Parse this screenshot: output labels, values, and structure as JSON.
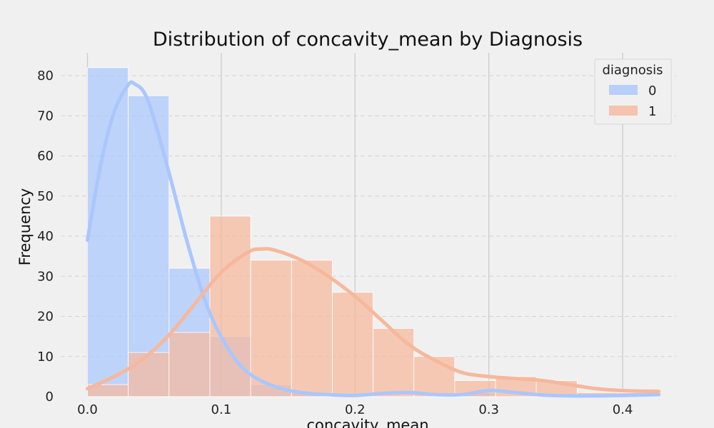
{
  "chart_data": {
    "type": "histogram",
    "title": "Distribution of concavity_mean by Diagnosis",
    "xlabel": "concavity_mean",
    "ylabel": "Frequency",
    "xlim": [
      -0.02,
      0.44
    ],
    "ylim": [
      0,
      85
    ],
    "x_ticks": [
      0.0,
      0.1,
      0.2,
      0.3,
      0.4
    ],
    "y_ticks": [
      0,
      10,
      20,
      30,
      40,
      50,
      60,
      70,
      80
    ],
    "grid": true,
    "legend": {
      "title": "diagnosis",
      "placement": "top-right"
    },
    "bin_edges": [
      0.0,
      0.0305,
      0.061,
      0.0915,
      0.122,
      0.1525,
      0.183,
      0.2135,
      0.244,
      0.2745,
      0.305,
      0.3355,
      0.366,
      0.3965,
      0.427
    ],
    "series": [
      {
        "name": "0",
        "color": "#aac7fd",
        "counts": [
          82,
          75,
          32,
          15,
          3,
          1,
          0,
          0,
          0,
          1,
          0,
          0,
          0,
          0
        ],
        "kde_x": [
          0.0,
          0.01,
          0.02,
          0.03,
          0.035,
          0.045,
          0.06,
          0.075,
          0.09,
          0.105,
          0.12,
          0.14,
          0.16,
          0.18,
          0.2,
          0.22,
          0.24,
          0.26,
          0.28,
          0.3,
          0.32,
          0.34,
          0.36,
          0.38,
          0.4,
          0.427
        ],
        "kde_y": [
          39,
          58,
          71,
          77.5,
          78,
          74,
          57,
          38,
          22,
          12,
          6,
          2.5,
          1,
          0.5,
          0.3,
          0.8,
          1,
          0.5,
          0.5,
          1.5,
          1,
          0.4,
          0.2,
          0.2,
          0.3,
          0.5
        ]
      },
      {
        "name": "1",
        "color": "#f6b89d",
        "counts": [
          3,
          11,
          16,
          45,
          34,
          34,
          26,
          17,
          10,
          4,
          5,
          4,
          1,
          1
        ],
        "kde_x": [
          0.0,
          0.02,
          0.04,
          0.06,
          0.08,
          0.1,
          0.12,
          0.13,
          0.14,
          0.16,
          0.18,
          0.2,
          0.22,
          0.24,
          0.26,
          0.28,
          0.3,
          0.32,
          0.34,
          0.36,
          0.38,
          0.4,
          0.427
        ],
        "kde_y": [
          2,
          5,
          9,
          15,
          23,
          31,
          36,
          36.8,
          36.5,
          34,
          30,
          25,
          19,
          13,
          9,
          6,
          5,
          4.5,
          4,
          3,
          2,
          1.5,
          1.3
        ]
      }
    ]
  }
}
